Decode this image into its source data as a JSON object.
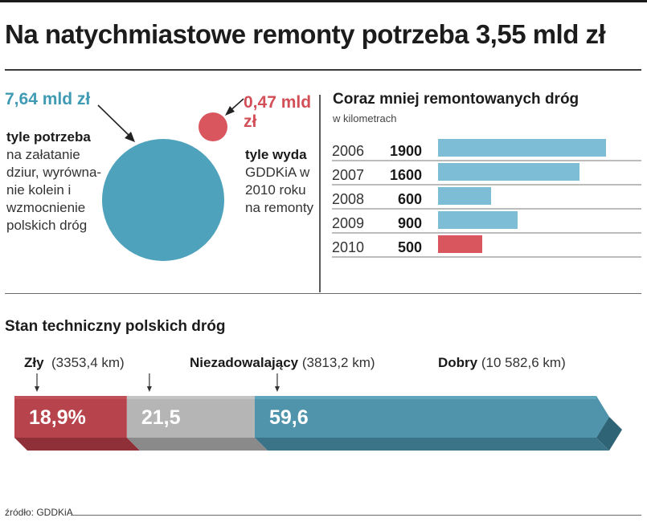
{
  "title": "Na natychmiastowe remonty potrzeba 3,55 mld zł",
  "bubbles": {
    "needed": {
      "amount": "7,64 mld zł",
      "label_bold": "tyle potrzeba",
      "label_rest": "na załatanie dziur, wyrówna-nie kolein i wzmocnienie polskich dróg",
      "color": "#4fa2bb"
    },
    "spent": {
      "amount": "0,47 mld zł",
      "label_bold": "tyle wyda",
      "label_rest": "GDDKiA w 2010 roku na remonty",
      "color": "#d9565f"
    }
  },
  "km_panel": {
    "title": "Coraz mniej remontowanych dróg",
    "subtitle": "w kilometrach"
  },
  "condition_panel": {
    "title": "Stan techniczny polskich dróg",
    "labels": [
      {
        "name": "Zły",
        "detail": "(3353,4 km)"
      },
      {
        "name": "Niezadowalający",
        "detail": "(3813,2 km)"
      },
      {
        "name": "Dobry",
        "detail": "(10 582,6 km)"
      }
    ]
  },
  "source": "źródło: GDDKiA",
  "chart_data": [
    {
      "type": "bar",
      "orientation": "horizontal",
      "title": "Coraz mniej remontowanych dróg",
      "unit": "w kilometrach",
      "categories": [
        "2006",
        "2007",
        "2008",
        "2009",
        "2010"
      ],
      "values": [
        1900,
        1600,
        600,
        900,
        500
      ],
      "value_labels": [
        "1900",
        "1600",
        "600",
        "900",
        "500"
      ],
      "colors": [
        "#7dbdd5",
        "#7dbdd5",
        "#7dbdd5",
        "#7dbdd5",
        "#d9565f"
      ],
      "xlim": [
        0,
        2300
      ]
    },
    {
      "type": "bar",
      "orientation": "horizontal-stacked",
      "title": "Stan techniczny polskich dróg",
      "categories": [
        "Zły",
        "Niezadowalający",
        "Dobry"
      ],
      "values": [
        18.9,
        21.5,
        59.6
      ],
      "value_labels": [
        "18,9%",
        "21,5",
        "59,6"
      ],
      "km": [
        3353.4,
        3813.2,
        10582.6
      ],
      "colors": [
        "#b7434c",
        "#b5b5b5",
        "#4f94ab"
      ]
    }
  ]
}
